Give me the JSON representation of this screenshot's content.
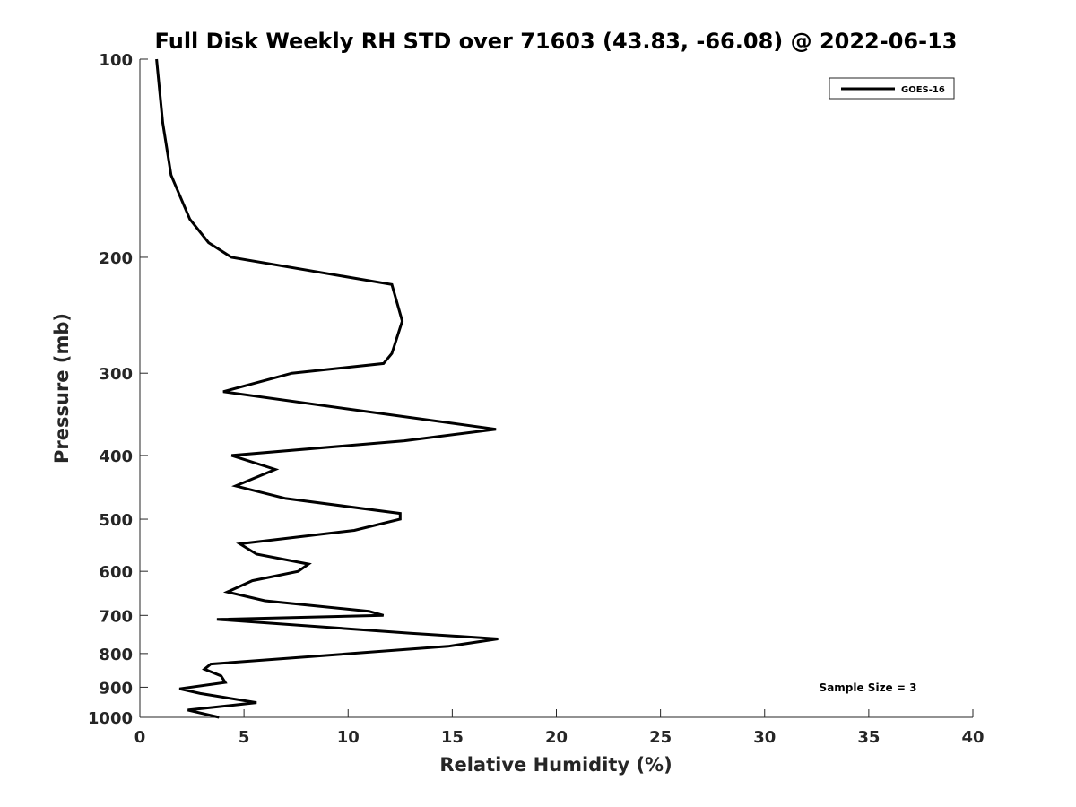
{
  "chart_data": {
    "type": "line",
    "title": "Full Disk Weekly RH STD over 71603 (43.83, -66.08) @ 2022-06-13",
    "xlabel": "Relative Humidity (%)",
    "ylabel": "Pressure (mb)",
    "xlim": [
      0,
      40
    ],
    "ylim": [
      100,
      1000
    ],
    "yscale": "log",
    "y_reversed": true,
    "xticks": [
      0,
      5,
      10,
      15,
      20,
      25,
      30,
      35,
      40
    ],
    "yticks": [
      100,
      200,
      300,
      400,
      500,
      600,
      700,
      800,
      900,
      1000
    ],
    "grid": false,
    "legend_position": "top-right",
    "annotation": "Sample Size = 3",
    "series": [
      {
        "name": "GOES-16",
        "color": "#000000",
        "points": [
          [
            0.8,
            100
          ],
          [
            1.1,
            125
          ],
          [
            1.5,
            150
          ],
          [
            2.4,
            175
          ],
          [
            3.3,
            190
          ],
          [
            4.4,
            200
          ],
          [
            12.1,
            220
          ],
          [
            12.6,
            250
          ],
          [
            12.1,
            280
          ],
          [
            11.7,
            290
          ],
          [
            7.3,
            300
          ],
          [
            4.0,
            320
          ],
          [
            10.0,
            340
          ],
          [
            17.1,
            365
          ],
          [
            12.7,
            380
          ],
          [
            4.4,
            400
          ],
          [
            6.5,
            420
          ],
          [
            4.6,
            445
          ],
          [
            7.0,
            465
          ],
          [
            12.5,
            490
          ],
          [
            12.5,
            500
          ],
          [
            10.3,
            520
          ],
          [
            4.8,
            545
          ],
          [
            5.6,
            565
          ],
          [
            8.1,
            585
          ],
          [
            7.6,
            600
          ],
          [
            5.4,
            620
          ],
          [
            4.2,
            645
          ],
          [
            6.0,
            665
          ],
          [
            11.0,
            690
          ],
          [
            11.7,
            700
          ],
          [
            3.7,
            710
          ],
          [
            13.0,
            745
          ],
          [
            17.2,
            760
          ],
          [
            14.8,
            780
          ],
          [
            3.4,
            830
          ],
          [
            3.1,
            845
          ],
          [
            3.9,
            865
          ],
          [
            4.1,
            885
          ],
          [
            1.9,
            905
          ],
          [
            2.9,
            920
          ],
          [
            5.6,
            950
          ],
          [
            2.3,
            975
          ],
          [
            3.8,
            1000
          ]
        ]
      }
    ]
  }
}
